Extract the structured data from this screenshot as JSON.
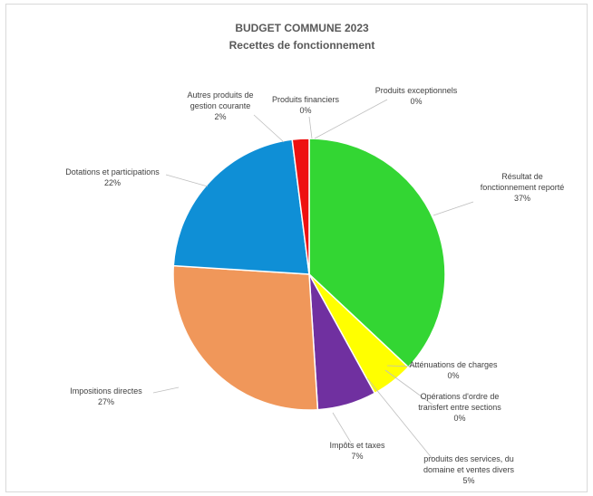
{
  "chart_data": {
    "type": "pie",
    "title": "BUDGET COMMUNE 2023",
    "subtitle": "Recettes de fonctionnement",
    "slices": [
      {
        "label": [
          "Résultat de",
          "fonctionnement reporté"
        ],
        "pct_label": "37%",
        "value": 37,
        "color": "#33d633"
      },
      {
        "label": [
          "Atténuations de charges"
        ],
        "pct_label": "0%",
        "value": 0,
        "color": "#d4a017"
      },
      {
        "label": [
          "Opérations d'ordre de",
          "transfert entre sections"
        ],
        "pct_label": "0%",
        "value": 0,
        "color": "#9ca3a8"
      },
      {
        "label": [
          "produits des services, du",
          "domaine et ventes divers"
        ],
        "pct_label": "5%",
        "value": 5,
        "color": "#ffff00"
      },
      {
        "label": [
          "Impôts et taxes"
        ],
        "pct_label": "7%",
        "value": 7,
        "color": "#7030a0"
      },
      {
        "label": [
          "Impositions directes"
        ],
        "pct_label": "27%",
        "value": 27,
        "color": "#f0975a"
      },
      {
        "label": [
          "Dotations et participations"
        ],
        "pct_label": "22%",
        "value": 22,
        "color": "#0f8fd6"
      },
      {
        "label": [
          "Autres produits de",
          "gestion courante"
        ],
        "pct_label": "2%",
        "value": 2,
        "color": "#ee1111"
      },
      {
        "label": [
          "Produits financiers"
        ],
        "pct_label": "0%",
        "value": 0,
        "color": "#c0c0c0"
      },
      {
        "label": [
          "Produits exceptionnels"
        ],
        "pct_label": "0%",
        "value": 0,
        "color": "#8fbc8f"
      }
    ]
  }
}
